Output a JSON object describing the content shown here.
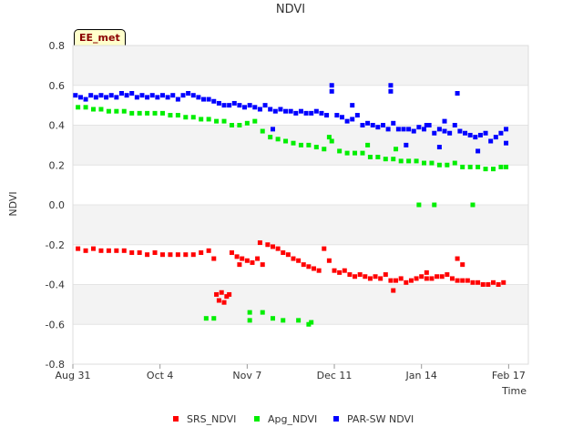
{
  "badge": "EE_met",
  "chart_data": {
    "type": "scatter",
    "title": "NDVI",
    "xlabel": "Time",
    "ylabel": "NDVI",
    "ylim": [
      -0.8,
      0.8
    ],
    "yticks": [
      "0.8",
      "0.6",
      "0.4",
      "0.2",
      "0.0",
      "-0.2",
      "-0.4",
      "-0.6",
      "-0.8"
    ],
    "xlim_days": [
      0,
      172
    ],
    "xticks": [
      {
        "label": "Aug 31",
        "day": 0
      },
      {
        "label": "Oct 4",
        "day": 34
      },
      {
        "label": "Nov 7",
        "day": 68
      },
      {
        "label": "Dec 11",
        "day": 102
      },
      {
        "label": "Jan 14",
        "day": 136
      },
      {
        "label": "Feb 17",
        "day": 170
      }
    ],
    "grid": "horizontal bands",
    "legend_position": "bottom",
    "series": [
      {
        "name": "SRS_NDVI",
        "color": "#ff0000",
        "points": [
          [
            2,
            -0.22
          ],
          [
            5,
            -0.23
          ],
          [
            8,
            -0.22
          ],
          [
            11,
            -0.23
          ],
          [
            14,
            -0.23
          ],
          [
            17,
            -0.23
          ],
          [
            20,
            -0.23
          ],
          [
            23,
            -0.24
          ],
          [
            26,
            -0.24
          ],
          [
            29,
            -0.25
          ],
          [
            32,
            -0.24
          ],
          [
            35,
            -0.25
          ],
          [
            38,
            -0.25
          ],
          [
            41,
            -0.25
          ],
          [
            44,
            -0.25
          ],
          [
            47,
            -0.25
          ],
          [
            50,
            -0.24
          ],
          [
            53,
            -0.23
          ],
          [
            56,
            -0.45
          ],
          [
            57,
            -0.48
          ],
          [
            58,
            -0.44
          ],
          [
            59,
            -0.49
          ],
          [
            60,
            -0.46
          ],
          [
            61,
            -0.45
          ],
          [
            62,
            -0.24
          ],
          [
            64,
            -0.26
          ],
          [
            66,
            -0.27
          ],
          [
            68,
            -0.28
          ],
          [
            70,
            -0.29
          ],
          [
            72,
            -0.27
          ],
          [
            74,
            -0.3
          ],
          [
            76,
            -0.2
          ],
          [
            78,
            -0.21
          ],
          [
            80,
            -0.22
          ],
          [
            82,
            -0.24
          ],
          [
            84,
            -0.25
          ],
          [
            86,
            -0.27
          ],
          [
            88,
            -0.28
          ],
          [
            90,
            -0.3
          ],
          [
            92,
            -0.31
          ],
          [
            94,
            -0.32
          ],
          [
            96,
            -0.33
          ],
          [
            98,
            -0.22
          ],
          [
            100,
            -0.28
          ],
          [
            102,
            -0.33
          ],
          [
            104,
            -0.34
          ],
          [
            106,
            -0.33
          ],
          [
            108,
            -0.35
          ],
          [
            110,
            -0.36
          ],
          [
            112,
            -0.35
          ],
          [
            114,
            -0.36
          ],
          [
            116,
            -0.37
          ],
          [
            118,
            -0.36
          ],
          [
            120,
            -0.37
          ],
          [
            122,
            -0.35
          ],
          [
            124,
            -0.38
          ],
          [
            126,
            -0.38
          ],
          [
            128,
            -0.37
          ],
          [
            130,
            -0.39
          ],
          [
            132,
            -0.38
          ],
          [
            134,
            -0.37
          ],
          [
            136,
            -0.36
          ],
          [
            138,
            -0.37
          ],
          [
            140,
            -0.37
          ],
          [
            142,
            -0.36
          ],
          [
            144,
            -0.36
          ],
          [
            146,
            -0.35
          ],
          [
            148,
            -0.37
          ],
          [
            150,
            -0.38
          ],
          [
            152,
            -0.38
          ],
          [
            154,
            -0.38
          ],
          [
            156,
            -0.39
          ],
          [
            158,
            -0.39
          ],
          [
            160,
            -0.4
          ],
          [
            162,
            -0.4
          ],
          [
            164,
            -0.39
          ],
          [
            166,
            -0.4
          ],
          [
            168,
            -0.39
          ],
          [
            55,
            -0.27
          ],
          [
            65,
            -0.3
          ],
          [
            73,
            -0.19
          ],
          [
            125,
            -0.43
          ],
          [
            150,
            -0.27
          ],
          [
            152,
            -0.3
          ],
          [
            138,
            -0.34
          ]
        ]
      },
      {
        "name": "Apg_NDVI",
        "color": "#00ee00",
        "points": [
          [
            2,
            0.49
          ],
          [
            5,
            0.49
          ],
          [
            8,
            0.48
          ],
          [
            11,
            0.48
          ],
          [
            14,
            0.47
          ],
          [
            17,
            0.47
          ],
          [
            20,
            0.47
          ],
          [
            23,
            0.46
          ],
          [
            26,
            0.46
          ],
          [
            29,
            0.46
          ],
          [
            32,
            0.46
          ],
          [
            35,
            0.46
          ],
          [
            38,
            0.45
          ],
          [
            41,
            0.45
          ],
          [
            44,
            0.44
          ],
          [
            47,
            0.44
          ],
          [
            50,
            0.43
          ],
          [
            53,
            0.43
          ],
          [
            56,
            0.42
          ],
          [
            59,
            0.42
          ],
          [
            62,
            0.4
          ],
          [
            65,
            0.4
          ],
          [
            68,
            0.41
          ],
          [
            71,
            0.42
          ],
          [
            74,
            0.37
          ],
          [
            77,
            0.34
          ],
          [
            80,
            0.33
          ],
          [
            83,
            0.32
          ],
          [
            86,
            0.31
          ],
          [
            89,
            0.3
          ],
          [
            92,
            0.3
          ],
          [
            95,
            0.29
          ],
          [
            98,
            0.28
          ],
          [
            101,
            0.32
          ],
          [
            104,
            0.27
          ],
          [
            107,
            0.26
          ],
          [
            110,
            0.26
          ],
          [
            113,
            0.26
          ],
          [
            116,
            0.24
          ],
          [
            119,
            0.24
          ],
          [
            122,
            0.23
          ],
          [
            125,
            0.23
          ],
          [
            128,
            0.22
          ],
          [
            131,
            0.22
          ],
          [
            134,
            0.22
          ],
          [
            137,
            0.21
          ],
          [
            140,
            0.21
          ],
          [
            143,
            0.2
          ],
          [
            146,
            0.2
          ],
          [
            149,
            0.21
          ],
          [
            152,
            0.19
          ],
          [
            155,
            0.19
          ],
          [
            158,
            0.19
          ],
          [
            161,
            0.18
          ],
          [
            164,
            0.18
          ],
          [
            167,
            0.19
          ],
          [
            169,
            0.19
          ],
          [
            52,
            -0.57
          ],
          [
            55,
            -0.57
          ],
          [
            69,
            -0.54
          ],
          [
            69,
            -0.58
          ],
          [
            74,
            -0.54
          ],
          [
            78,
            -0.57
          ],
          [
            82,
            -0.58
          ],
          [
            88,
            -0.58
          ],
          [
            92,
            -0.6
          ],
          [
            93,
            -0.59
          ],
          [
            135,
            0.0
          ],
          [
            141,
            0.0
          ],
          [
            156,
            0.0
          ],
          [
            100,
            0.34
          ],
          [
            115,
            0.3
          ],
          [
            126,
            0.28
          ]
        ]
      },
      {
        "name": "PAR-SW NDVI",
        "color": "#0000ff",
        "points": [
          [
            1,
            0.55
          ],
          [
            3,
            0.54
          ],
          [
            5,
            0.53
          ],
          [
            7,
            0.55
          ],
          [
            9,
            0.54
          ],
          [
            11,
            0.55
          ],
          [
            13,
            0.54
          ],
          [
            15,
            0.55
          ],
          [
            17,
            0.54
          ],
          [
            19,
            0.56
          ],
          [
            21,
            0.55
          ],
          [
            23,
            0.56
          ],
          [
            25,
            0.54
          ],
          [
            27,
            0.55
          ],
          [
            29,
            0.54
          ],
          [
            31,
            0.55
          ],
          [
            33,
            0.54
          ],
          [
            35,
            0.55
          ],
          [
            37,
            0.54
          ],
          [
            39,
            0.55
          ],
          [
            41,
            0.53
          ],
          [
            43,
            0.55
          ],
          [
            45,
            0.56
          ],
          [
            47,
            0.55
          ],
          [
            49,
            0.54
          ],
          [
            51,
            0.53
          ],
          [
            53,
            0.53
          ],
          [
            55,
            0.52
          ],
          [
            57,
            0.51
          ],
          [
            59,
            0.5
          ],
          [
            61,
            0.5
          ],
          [
            63,
            0.51
          ],
          [
            65,
            0.5
          ],
          [
            67,
            0.49
          ],
          [
            69,
            0.5
          ],
          [
            71,
            0.49
          ],
          [
            73,
            0.48
          ],
          [
            75,
            0.5
          ],
          [
            77,
            0.48
          ],
          [
            79,
            0.47
          ],
          [
            81,
            0.48
          ],
          [
            83,
            0.47
          ],
          [
            85,
            0.47
          ],
          [
            87,
            0.46
          ],
          [
            89,
            0.47
          ],
          [
            91,
            0.46
          ],
          [
            93,
            0.46
          ],
          [
            95,
            0.47
          ],
          [
            97,
            0.46
          ],
          [
            99,
            0.45
          ],
          [
            101,
            0.57
          ],
          [
            101,
            0.6
          ],
          [
            103,
            0.45
          ],
          [
            105,
            0.44
          ],
          [
            107,
            0.42
          ],
          [
            109,
            0.43
          ],
          [
            111,
            0.45
          ],
          [
            113,
            0.4
          ],
          [
            115,
            0.41
          ],
          [
            117,
            0.4
          ],
          [
            119,
            0.39
          ],
          [
            121,
            0.4
          ],
          [
            123,
            0.38
          ],
          [
            125,
            0.41
          ],
          [
            127,
            0.38
          ],
          [
            129,
            0.38
          ],
          [
            131,
            0.38
          ],
          [
            133,
            0.37
          ],
          [
            135,
            0.39
          ],
          [
            137,
            0.38
          ],
          [
            139,
            0.4
          ],
          [
            141,
            0.36
          ],
          [
            143,
            0.38
          ],
          [
            145,
            0.37
          ],
          [
            147,
            0.36
          ],
          [
            149,
            0.4
          ],
          [
            151,
            0.37
          ],
          [
            153,
            0.36
          ],
          [
            155,
            0.35
          ],
          [
            157,
            0.34
          ],
          [
            159,
            0.35
          ],
          [
            161,
            0.36
          ],
          [
            163,
            0.32
          ],
          [
            165,
            0.34
          ],
          [
            167,
            0.36
          ],
          [
            169,
            0.38
          ],
          [
            109,
            0.5
          ],
          [
            124,
            0.57
          ],
          [
            124,
            0.6
          ],
          [
            150,
            0.56
          ],
          [
            145,
            0.42
          ],
          [
            143,
            0.29
          ],
          [
            158,
            0.27
          ],
          [
            169,
            0.31
          ],
          [
            78,
            0.38
          ],
          [
            130,
            0.3
          ],
          [
            138,
            0.4
          ]
        ]
      }
    ]
  }
}
